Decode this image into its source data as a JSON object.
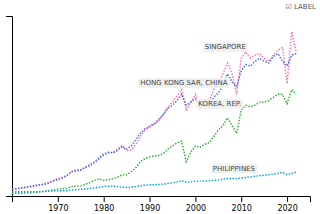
{
  "chart_data": {
    "type": "line",
    "x": [
      1960,
      1961,
      1962,
      1963,
      1964,
      1965,
      1966,
      1967,
      1968,
      1969,
      1970,
      1971,
      1972,
      1973,
      1974,
      1975,
      1976,
      1977,
      1978,
      1979,
      1980,
      1981,
      1982,
      1983,
      1984,
      1985,
      1986,
      1987,
      1988,
      1989,
      1990,
      1991,
      1992,
      1993,
      1994,
      1995,
      1996,
      1997,
      1998,
      1999,
      2000,
      2001,
      2002,
      2003,
      2004,
      2005,
      2006,
      2007,
      2008,
      2009,
      2010,
      2011,
      2012,
      2013,
      2014,
      2015,
      2016,
      2017,
      2018,
      2019,
      2020,
      2021,
      2022
    ],
    "series": [
      {
        "color": "#ff69b4",
        "values": [
          0.43,
          0.46,
          0.5,
          0.54,
          0.58,
          0.62,
          0.7,
          0.78,
          0.88,
          1.0,
          1.1,
          1.2,
          1.32,
          1.55,
          1.7,
          1.65,
          1.8,
          1.92,
          2.1,
          2.35,
          2.6,
          2.75,
          2.8,
          3.0,
          3.25,
          2.9,
          2.95,
          3.3,
          3.8,
          4.2,
          4.5,
          4.6,
          4.8,
          5.2,
          5.7,
          6.0,
          6.4,
          6.8,
          5.5,
          6.0,
          6.5,
          5.6,
          5.8,
          6.0,
          6.8,
          7.2,
          7.8,
          8.5,
          7.8,
          6.5,
          8.8,
          9.2,
          8.8,
          9.0,
          9.1,
          8.8,
          8.6,
          9.0,
          9.3,
          9.5,
          7.2,
          10.5,
          9.2
        ]
      },
      {
        "color": "#4169e1",
        "values": [
          0.43,
          0.47,
          0.51,
          0.56,
          0.61,
          0.66,
          0.72,
          0.73,
          0.82,
          0.95,
          1.05,
          1.15,
          1.3,
          1.55,
          1.6,
          1.65,
          1.85,
          2.0,
          2.2,
          2.45,
          2.7,
          2.8,
          2.75,
          2.9,
          3.15,
          3.0,
          3.2,
          3.6,
          4.0,
          4.3,
          4.4,
          4.6,
          4.9,
          5.2,
          5.6,
          5.8,
          6.1,
          6.5,
          5.8,
          6.0,
          6.2,
          5.8,
          5.9,
          5.7,
          6.3,
          6.6,
          7.0,
          7.8,
          7.3,
          7.0,
          8.0,
          8.4,
          8.3,
          8.6,
          8.8,
          8.6,
          8.5,
          8.9,
          9.1,
          8.6,
          8.3,
          9.0,
          9.1
        ]
      },
      {
        "color": "#32a832",
        "values": [
          0.16,
          0.17,
          0.18,
          0.2,
          0.21,
          0.22,
          0.26,
          0.29,
          0.34,
          0.39,
          0.43,
          0.46,
          0.5,
          0.6,
          0.64,
          0.65,
          0.75,
          0.85,
          1.0,
          1.1,
          1.0,
          1.05,
          1.1,
          1.2,
          1.35,
          1.35,
          1.55,
          1.8,
          2.2,
          2.4,
          2.5,
          2.55,
          2.6,
          2.7,
          3.0,
          3.2,
          3.4,
          3.5,
          2.2,
          2.8,
          3.2,
          3.1,
          3.3,
          3.4,
          3.8,
          4.2,
          4.5,
          5.0,
          4.5,
          4.0,
          5.5,
          5.8,
          5.7,
          5.8,
          6.0,
          6.0,
          6.1,
          6.3,
          6.5,
          6.5,
          5.9,
          6.8,
          6.5
        ]
      },
      {
        "color": "#00a0e0",
        "values": [
          0.26,
          0.27,
          0.27,
          0.27,
          0.28,
          0.28,
          0.29,
          0.3,
          0.31,
          0.32,
          0.33,
          0.34,
          0.35,
          0.38,
          0.4,
          0.42,
          0.45,
          0.48,
          0.52,
          0.56,
          0.62,
          0.62,
          0.64,
          0.61,
          0.56,
          0.54,
          0.56,
          0.6,
          0.65,
          0.69,
          0.72,
          0.72,
          0.74,
          0.76,
          0.8,
          0.84,
          0.9,
          0.98,
          0.88,
          0.9,
          0.95,
          0.95,
          0.96,
          0.97,
          1.0,
          1.03,
          1.07,
          1.12,
          1.12,
          1.11,
          1.15,
          1.18,
          1.22,
          1.26,
          1.3,
          1.32,
          1.36,
          1.4,
          1.44,
          1.5,
          1.38,
          1.44,
          1.52
        ]
      }
    ],
    "annotations": [
      {
        "text": "SINGAPORE",
        "x": 2011,
        "y": 9.5
      },
      {
        "text": "HONG KONG SAR, CHINA",
        "x": 2007,
        "y": 7.2
      },
      {
        "text": "KOREA, REP.",
        "x": 2010,
        "y": 5.9
      },
      {
        "text": "PHILIPPINES",
        "x": 2013,
        "y": 1.75
      },
      {
        "text": "☑ LABEL"
      }
    ],
    "xlim": [
      1960,
      2025
    ],
    "ylim": [
      0,
      11.5
    ],
    "xticks": [
      1970,
      1980,
      1990,
      2000,
      2010,
      2020
    ],
    "yticks": [],
    "grid": false,
    "tick_labels": "x",
    "line_style": "dotted"
  }
}
